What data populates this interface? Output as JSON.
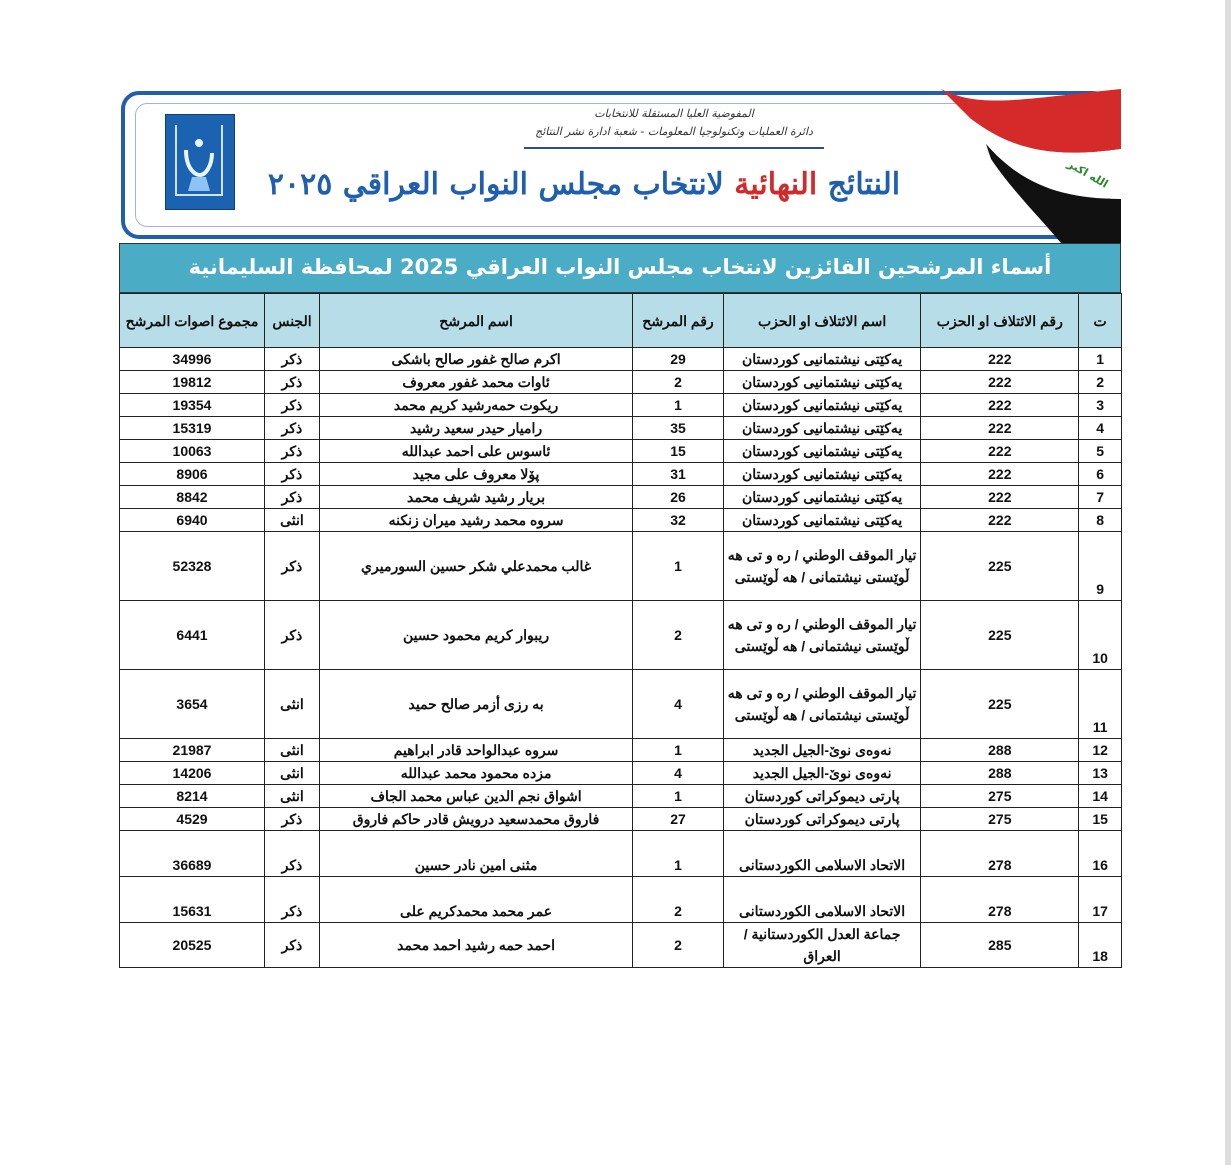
{
  "banner": {
    "commission": "المفوضية العليا المستقلة للانتخابات",
    "department": "دائرة العمليات وتكنولوجيا المعلومات - شعبة ادارة نشر النتائج",
    "title_part1": "النتائج",
    "title_red": "النهائية",
    "title_part2": "لانتخاب مجلس النواب العراقي ٢٠٢٥",
    "flag_text": "الله اكبر",
    "colors": {
      "blue": "#1f5fae",
      "red": "#d12a2a"
    }
  },
  "heading": "أسماء المرشحين الفائزين لانتخاب مجلس النواب العراقي 2025 لمحافظة السليمانية",
  "table": {
    "headers": [
      "ت",
      "رقم الائتلاف او الحزب",
      "اسم الائتلاف او الحزب",
      "رقم المرشح",
      "اسم المرشح",
      "الجنس",
      "مجموع اصوات المرشح"
    ],
    "rows": [
      [
        "1",
        "222",
        "يەکێتی نیشتمانیی کوردستان",
        "29",
        "اكرم صالح غفور صالح باشكى",
        "ذكر",
        "34996"
      ],
      [
        "2",
        "222",
        "یەکێتی نیشتمانیی کوردستان",
        "2",
        "ئاوات محمد غفور معروف",
        "ذكر",
        "19812"
      ],
      [
        "3",
        "222",
        "یەکێتی نیشتمانیی کوردستان",
        "1",
        "ريكوت حمەرشيد كريم محمد",
        "ذكر",
        "19354"
      ],
      [
        "4",
        "222",
        "یەکێتی نیشتمانیی کوردستان",
        "35",
        "راميار حيدر سعيد رشيد",
        "ذكر",
        "15319"
      ],
      [
        "5",
        "222",
        "یەکێتی نیشتمانیی کوردستان",
        "15",
        "ئاسوس على احمد عبدالله",
        "ذكر",
        "10063"
      ],
      [
        "6",
        "222",
        "یەکێتی نیشتمانیی کوردستان",
        "31",
        "پۆلا معروف على مجيد",
        "ذكر",
        "8906"
      ],
      [
        "7",
        "222",
        "یەکێتی نیشتمانیی کوردستان",
        "26",
        "بريار رشيد شريف محمد",
        "ذكر",
        "8842"
      ],
      [
        "8",
        "222",
        "یەکێتی نیشتمانیی کوردستان",
        "32",
        "سروه محمد رشيد ميران زنكنه",
        "انثى",
        "6940"
      ],
      [
        "9",
        "225",
        "تيار الموقف الوطني / ره و تى هه ڵوێستی نيشتمانى / هه ڵوێستی",
        "1",
        "غالب محمدعلي شكر حسين السورميري",
        "ذكر",
        "52328"
      ],
      [
        "10",
        "225",
        "تيار الموقف الوطني / ره و تى هه ڵوێستی نيشتمانى / هه ڵوێستی",
        "2",
        "ريبوار كريم محمود حسين",
        "ذكر",
        "6441"
      ],
      [
        "11",
        "225",
        "تيار الموقف الوطني / ره و تى هه ڵوێستی نيشتمانى / هه ڵوێستی",
        "4",
        "به رزى أزمر صالح حميد",
        "انثى",
        "3654"
      ],
      [
        "12",
        "288",
        "نەوەی نوێ-الجيل الجديد",
        "1",
        "سروه عبدالواحد قادر ابراهيم",
        "انثى",
        "21987"
      ],
      [
        "13",
        "288",
        "نەوەی نوێ-الجيل الجديد",
        "4",
        "مزده محمود محمد عبدالله",
        "انثى",
        "14206"
      ],
      [
        "14",
        "275",
        "پارتی ديموكراتى كوردستان",
        "1",
        "اشواق نجم الدين عباس محمد الجاف",
        "انثى",
        "8214"
      ],
      [
        "15",
        "275",
        "پارتی ديموكراتى كوردستان",
        "27",
        "فاروق محمدسعيد درويش قادر حاكم فاروق",
        "ذكر",
        "4529"
      ],
      [
        "16",
        "278",
        "الاتحاد الاسلامى الكوردستانى",
        "1",
        "مثنى امين نادر حسين",
        "ذكر",
        "36689"
      ],
      [
        "17",
        "278",
        "الاتحاد الاسلامى الكوردستانى",
        "2",
        "عمر محمد محمدكريم على",
        "ذكر",
        "15631"
      ],
      [
        "18",
        "285",
        "جماعة العدل الكوردستانية / العراق",
        "2",
        "احمد حمه رشيد احمد محمد",
        "ذكر",
        "20525"
      ]
    ]
  }
}
